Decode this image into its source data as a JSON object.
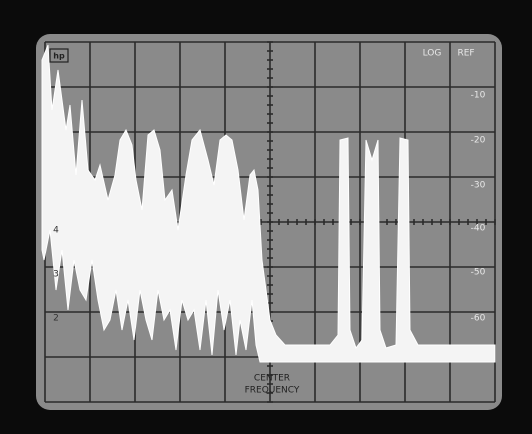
{
  "display": {
    "logo": "hp",
    "header": [
      "LOG",
      "REF"
    ],
    "scale": [
      "-10",
      "-20",
      "-30",
      "-40",
      "-50",
      "-60"
    ],
    "divisions": [
      "4",
      "3",
      "2"
    ],
    "footer": [
      "CENTER",
      "FREQUENCY"
    ]
  }
}
